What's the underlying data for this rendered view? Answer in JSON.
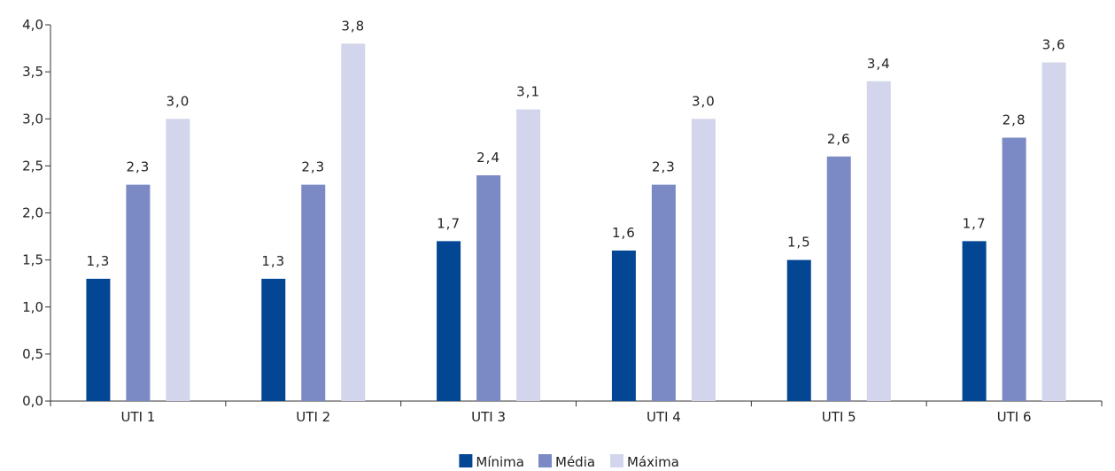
{
  "chart_data": {
    "type": "bar",
    "categories": [
      "UTI 1",
      "UTI 2",
      "UTI 3",
      "UTI 4",
      "UTI 5",
      "UTI 6"
    ],
    "series": [
      {
        "name": "Mínima",
        "values": [
          1.3,
          1.3,
          1.7,
          1.6,
          1.5,
          1.7
        ],
        "labels": [
          "1,3",
          "1,3",
          "1,7",
          "1,6",
          "1,5",
          "1,7"
        ],
        "color": "#034694"
      },
      {
        "name": "Média",
        "values": [
          2.3,
          2.3,
          2.4,
          2.3,
          2.6,
          2.8
        ],
        "labels": [
          "2,3",
          "2,3",
          "2,4",
          "2,3",
          "2,6",
          "2,8"
        ],
        "color": "#7b8ac4"
      },
      {
        "name": "Máxima",
        "values": [
          3.0,
          3.8,
          3.1,
          3.0,
          3.4,
          3.6
        ],
        "labels": [
          "3,0",
          "3,8",
          "3,1",
          "3,0",
          "3,4",
          "3,6"
        ],
        "color": "#d2d5eb"
      }
    ],
    "ylim": [
      0,
      4.0
    ],
    "yticks": [
      0,
      0.5,
      1.0,
      1.5,
      2.0,
      2.5,
      3.0,
      3.5,
      4.0
    ],
    "ytick_labels": [
      "0,0",
      "0,5",
      "1,0",
      "1,5",
      "2,0",
      "2,5",
      "3,0",
      "3,5",
      "4,0"
    ],
    "title": "",
    "xlabel": "",
    "ylabel": "",
    "grid": false,
    "legend_position": "bottom-center"
  }
}
